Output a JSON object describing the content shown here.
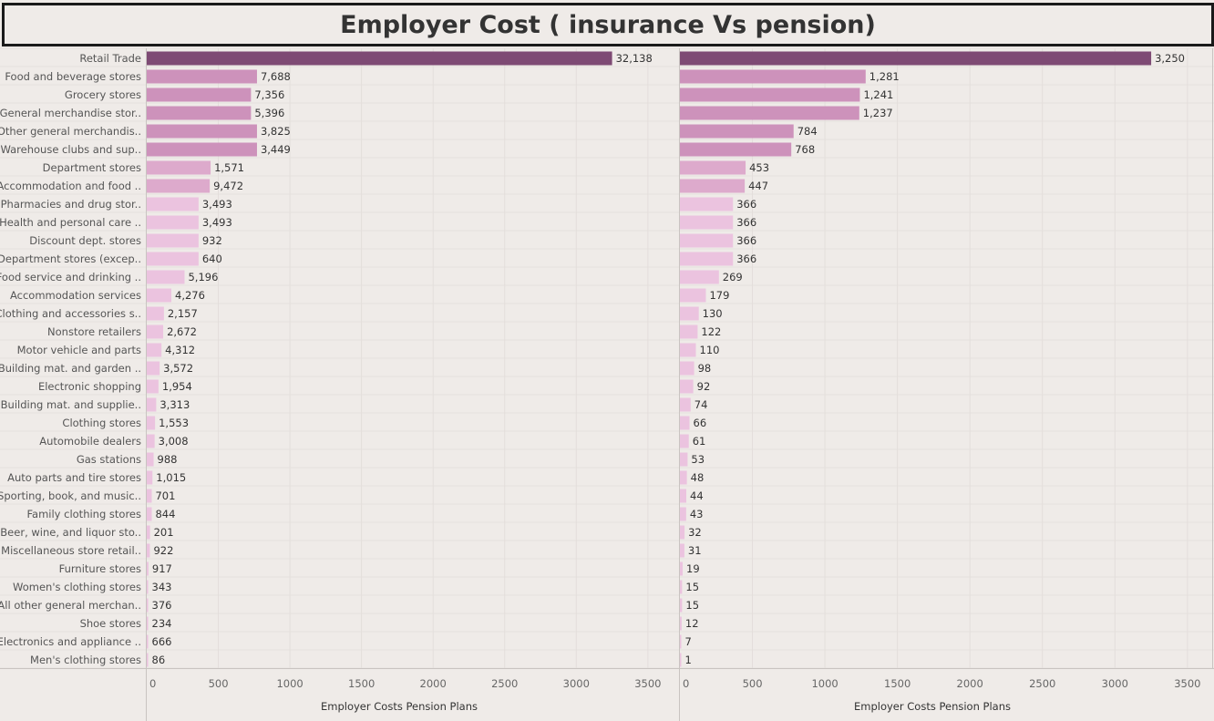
{
  "title": "Employer Cost ( insurance Vs pension)",
  "chart_data": [
    {
      "type": "bar",
      "orientation": "horizontal",
      "categories": [
        "Retail Trade",
        "Food and beverage stores",
        "Grocery stores",
        "General merchandise stor..",
        "Other general merchandis..",
        "Warehouse clubs and sup..",
        "Department stores",
        "Accommodation and food ..",
        "Pharmacies and drug stor..",
        "Health and personal care ..",
        "Discount dept. stores",
        "Department stores (excep..",
        "Food service and drinking ..",
        "Accommodation services",
        "Clothing and accessories s..",
        "Nonstore retailers",
        "Motor vehicle and parts",
        "Building mat. and garden ..",
        "Electronic shopping",
        "Building mat. and supplie..",
        "Clothing stores",
        "Automobile dealers",
        "Gas stations",
        "Auto parts and tire stores",
        "Sporting, book, and music..",
        "Family clothing stores",
        "Beer, wine, and liquor sto..",
        "Miscellaneous store retail..",
        "Furniture stores",
        "Women's clothing stores",
        "All other general merchan..",
        "Shoe stores",
        "Electronics and appliance ..",
        "Men's clothing stores"
      ],
      "values": [
        3250,
        770,
        728,
        728,
        770,
        770,
        446,
        440,
        362,
        362,
        362,
        362,
        264,
        172,
        120,
        115,
        103,
        90,
        82,
        66,
        58,
        55,
        48,
        40,
        35,
        35,
        23,
        22,
        12,
        8,
        8,
        5,
        3,
        1
      ],
      "data_labels": [
        "32,138",
        "7,688",
        "7,356",
        "5,396",
        "3,825",
        "3,449",
        "1,571",
        "9,472",
        "3,493",
        "3,493",
        "932",
        "640",
        "5,196",
        "4,276",
        "2,157",
        "2,672",
        "4,312",
        "3,572",
        "1,954",
        "3,313",
        "1,553",
        "3,008",
        "988",
        "1,015",
        "701",
        "844",
        "201",
        "922",
        "917",
        "343",
        "376",
        "234",
        "666",
        "86"
      ],
      "xlabel": "Employer Costs Pension Plans",
      "xlim": [
        0,
        3600
      ],
      "xticks": [
        0,
        500,
        1000,
        1500,
        2000,
        2500,
        3000,
        3500
      ],
      "grid": true
    },
    {
      "type": "bar",
      "orientation": "horizontal",
      "values": [
        3250,
        1281,
        1241,
        1237,
        784,
        768,
        453,
        447,
        366,
        366,
        366,
        366,
        269,
        179,
        130,
        122,
        110,
        98,
        92,
        74,
        66,
        61,
        53,
        48,
        44,
        43,
        32,
        31,
        19,
        15,
        15,
        12,
        7,
        1
      ],
      "data_labels": [
        "3,250",
        "1,281",
        "1,241",
        "1,237",
        "784",
        "768",
        "453",
        "447",
        "366",
        "366",
        "366",
        "366",
        "269",
        "179",
        "130",
        "122",
        "110",
        "98",
        "92",
        "74",
        "66",
        "61",
        "53",
        "48",
        "44",
        "43",
        "32",
        "31",
        "19",
        "15",
        "15",
        "12",
        "7",
        "1"
      ],
      "xlabel": "Employer Costs Pension Plans",
      "xlim": [
        0,
        3600
      ],
      "xticks": [
        0,
        500,
        1000,
        1500,
        2000,
        2500,
        3000,
        3500
      ],
      "grid": true
    }
  ],
  "colors": {
    "bar_max": "#7e4a74",
    "bar_high": "#cd92bb",
    "bar_mid": "#ddaacc",
    "bar_low": "#ebc3df",
    "background": "#efebe8",
    "grid": "#e3dedb"
  }
}
